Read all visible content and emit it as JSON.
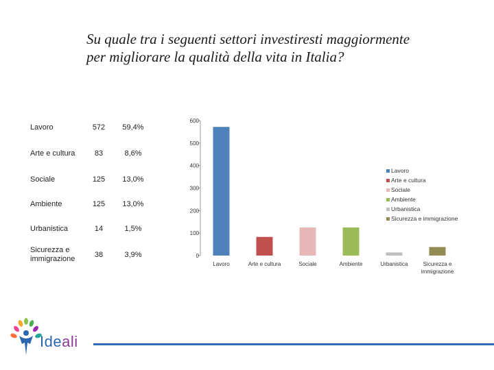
{
  "title": "Su quale tra i seguenti settori investiresti maggiormente per migliorare la qualità della vita in Italia?",
  "table": [
    {
      "label": "Lavoro",
      "count": "572",
      "percent": "59,4%"
    },
    {
      "label": "Arte e cultura",
      "count": "83",
      "percent": "8,6%"
    },
    {
      "label": "Sociale",
      "count": "125",
      "percent": "13,0%"
    },
    {
      "label": "Ambiente",
      "count": "125",
      "percent": "13,0%"
    },
    {
      "label": "Urbanistica",
      "count": "14",
      "percent": "1,5%"
    },
    {
      "label": "Sicurezza e immigrazione",
      "count": "38",
      "percent": "3,9%"
    }
  ],
  "chart_data": {
    "type": "bar",
    "title": "",
    "xlabel": "",
    "ylabel": "",
    "categories": [
      "Lavoro",
      "Arte e cultura",
      "Sociale",
      "Ambiente",
      "Urbanistica",
      "Sicurezza e immigrazione"
    ],
    "values": [
      572,
      83,
      125,
      125,
      14,
      38
    ],
    "colors": [
      "#4f81bd",
      "#c0504d",
      "#e6b9b8",
      "#9bbb59",
      "#bfbfbf",
      "#948a54"
    ],
    "ylim": [
      0,
      600
    ],
    "yticks": [
      0,
      100,
      200,
      300,
      400,
      500,
      600
    ],
    "legend": {
      "placement": "right",
      "entries": [
        "Lavoro",
        "Arte e cultura",
        "Sociale",
        "Ambiente",
        "Urbanistica",
        "Sicurezza e immigrazione"
      ]
    },
    "grid": false
  },
  "logo": {
    "text_part1": "Ide",
    "text_part2": "ali"
  }
}
